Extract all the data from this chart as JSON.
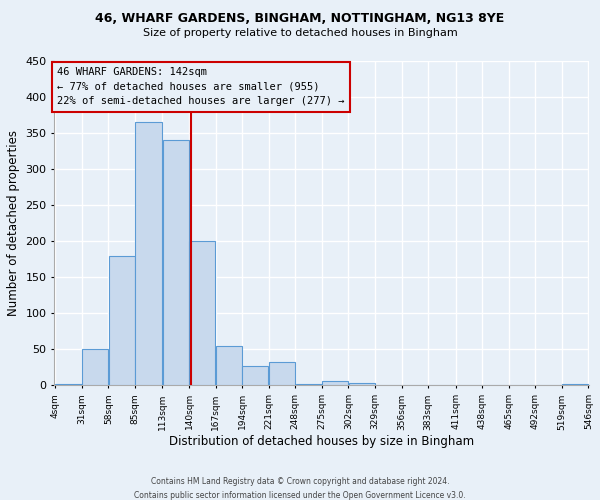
{
  "title1": "46, WHARF GARDENS, BINGHAM, NOTTINGHAM, NG13 8YE",
  "title2": "Size of property relative to detached houses in Bingham",
  "xlabel": "Distribution of detached houses by size in Bingham",
  "ylabel": "Number of detached properties",
  "bin_edges": [
    4,
    31,
    58,
    85,
    113,
    140,
    167,
    194,
    221,
    248,
    275,
    302,
    329,
    356,
    383,
    411,
    438,
    465,
    492,
    519,
    546
  ],
  "bar_heights": [
    2,
    50,
    180,
    365,
    340,
    200,
    55,
    27,
    33,
    2,
    6,
    3,
    0,
    0,
    0,
    0,
    0,
    0,
    0,
    2
  ],
  "bar_color": "#c8d9ed",
  "bar_edge_color": "#5b9bd5",
  "reference_line_x": 142,
  "reference_line_color": "#cc0000",
  "ylim": [
    0,
    450
  ],
  "yticks": [
    0,
    50,
    100,
    150,
    200,
    250,
    300,
    350,
    400,
    450
  ],
  "annotation_title": "46 WHARF GARDENS: 142sqm",
  "annotation_line1": "← 77% of detached houses are smaller (955)",
  "annotation_line2": "22% of semi-detached houses are larger (277) →",
  "annotation_box_color": "#cc0000",
  "footer1": "Contains HM Land Registry data © Crown copyright and database right 2024.",
  "footer2": "Contains public sector information licensed under the Open Government Licence v3.0.",
  "bg_color": "#e8f0f8",
  "grid_color": "#ffffff"
}
